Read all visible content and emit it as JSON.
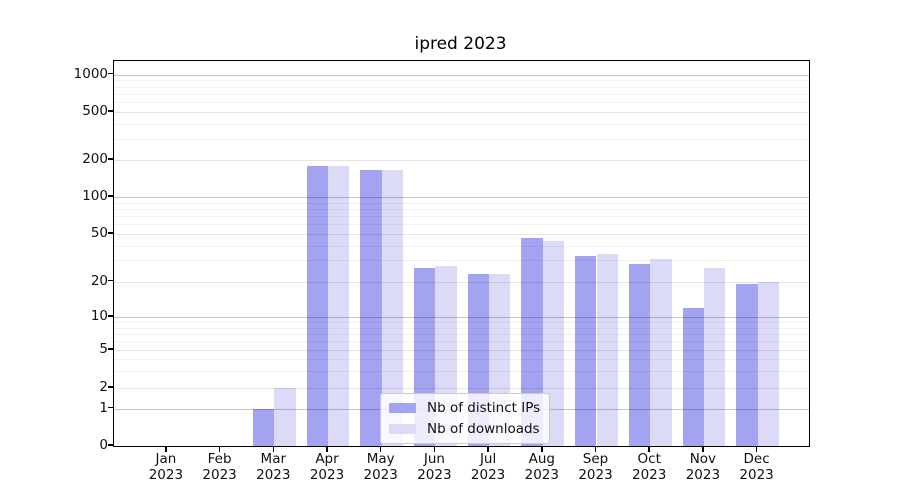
{
  "title": "ipred 2023",
  "chart_data": {
    "type": "bar",
    "title": "ipred 2023",
    "categories": [
      "Jan 2023",
      "Feb 2023",
      "Mar 2023",
      "Apr 2023",
      "May 2023",
      "Jun 2023",
      "Jul 2023",
      "Aug 2023",
      "Sep 2023",
      "Oct 2023",
      "Nov 2023",
      "Dec 2023"
    ],
    "series": [
      {
        "name": "Nb of distinct IPs",
        "color": "#a3a3f2",
        "values": [
          0,
          0,
          1,
          180,
          165,
          26,
          23,
          46,
          33,
          28,
          12,
          19
        ]
      },
      {
        "name": "Nb of downloads",
        "color": "#dbdbf8",
        "values": [
          0,
          0,
          2,
          180,
          167,
          27,
          23,
          44,
          34,
          31,
          26,
          20
        ]
      }
    ],
    "xlabel": "",
    "ylabel": "",
    "yticks": [
      0,
      1,
      2,
      5,
      10,
      20,
      50,
      100,
      200,
      500,
      1000
    ],
    "ylim": [
      0,
      1100
    ],
    "scale": "symlog",
    "grid": true,
    "legend_position": "lower-center"
  },
  "legend": {
    "items": [
      {
        "label": "Nb of distinct IPs",
        "color": "#a3a3f2"
      },
      {
        "label": "Nb of downloads",
        "color": "#dbdbf8"
      }
    ]
  }
}
